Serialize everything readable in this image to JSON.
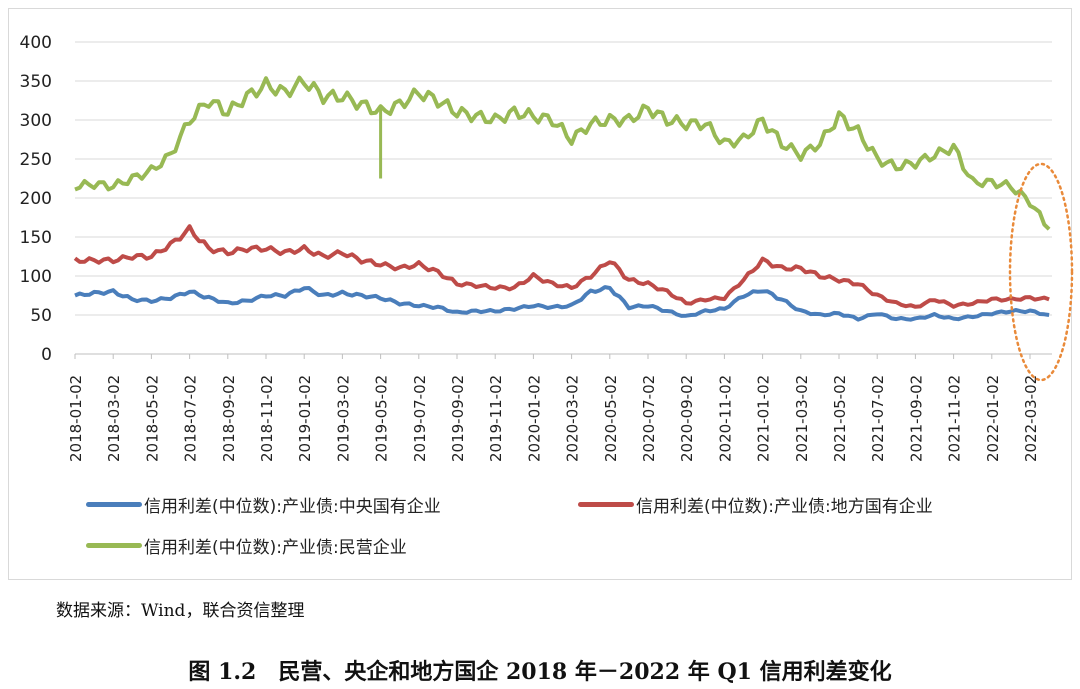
{
  "chart_data": {
    "type": "line",
    "title": "图 1.2　民营、央企和地方国企 2018 年－2022 年 Q1 信用利差变化",
    "source": "数据来源：Wind，联合资信整理",
    "xlabel": "",
    "ylabel": "",
    "ylim": [
      0,
      400
    ],
    "yticks": [
      0,
      50,
      100,
      150,
      200,
      250,
      300,
      350,
      400
    ],
    "xticks": [
      "2018-01-02",
      "2018-03-02",
      "2018-05-02",
      "2018-07-02",
      "2018-09-02",
      "2018-11-02",
      "2019-01-02",
      "2019-03-02",
      "2019-05-02",
      "2019-07-02",
      "2019-09-02",
      "2019-11-02",
      "2020-01-02",
      "2020-03-02",
      "2020-05-02",
      "2020-07-02",
      "2020-09-02",
      "2020-11-02",
      "2021-01-02",
      "2021-03-02",
      "2021-05-02",
      "2021-07-02",
      "2021-09-02",
      "2021-11-02",
      "2022-01-02",
      "2022-03-02"
    ],
    "x_unit": "months since 2018-01-02",
    "grid": true,
    "legend_position": "bottom",
    "annotation": "orange dotted ellipse highlighting 2022-03 to 2022-04",
    "series": [
      {
        "name": "信用利差(中位数):产业债:中央国有企业",
        "color": "#4a7ebb",
        "values": [
          75,
          78,
          80,
          70,
          68,
          72,
          80,
          72,
          65,
          68,
          75,
          75,
          85,
          75,
          78,
          75,
          72,
          65,
          62,
          60,
          53,
          55,
          55,
          58,
          62,
          60,
          62,
          80,
          85,
          60,
          62,
          55,
          48,
          55,
          58,
          75,
          82,
          70,
          55,
          50,
          52,
          45,
          52,
          45,
          45,
          50,
          45,
          48,
          52,
          55,
          55,
          50
        ]
      },
      {
        "name": "信用利差(中位数):产业债:地方国有企业",
        "color": "#be4b48",
        "values": [
          120,
          120,
          120,
          125,
          125,
          140,
          160,
          135,
          130,
          135,
          135,
          130,
          135,
          125,
          130,
          120,
          115,
          110,
          115,
          105,
          90,
          88,
          85,
          85,
          100,
          90,
          85,
          100,
          120,
          95,
          90,
          80,
          65,
          70,
          72,
          95,
          120,
          110,
          110,
          100,
          95,
          90,
          75,
          65,
          60,
          70,
          62,
          65,
          70,
          70,
          72,
          70
        ]
      },
      {
        "name": "信用利差(中位数):产业债:民营企业",
        "color": "#98b954",
        "values": [
          215,
          218,
          215,
          225,
          235,
          255,
          300,
          325,
          310,
          330,
          345,
          335,
          350,
          330,
          330,
          320,
          310,
          320,
          335,
          325,
          310,
          305,
          300,
          310,
          305,
          300,
          275,
          295,
          300,
          300,
          315,
          300,
          295,
          295,
          270,
          275,
          300,
          270,
          255,
          270,
          305,
          285,
          250,
          240,
          245,
          255,
          265,
          220,
          220,
          215,
          195,
          160
        ]
      }
    ]
  }
}
